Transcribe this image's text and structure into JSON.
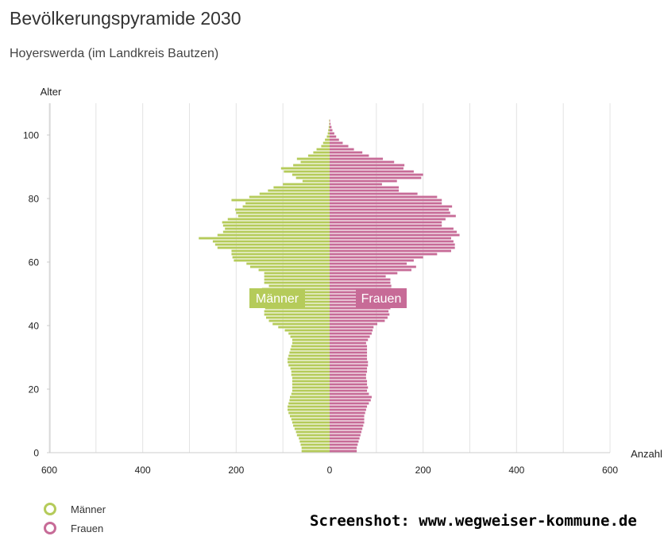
{
  "header": {
    "title": "Bevölkerungspyramide 2030",
    "subtitle": "Hoyerswerda (im Landkreis Bautzen)"
  },
  "legend": [
    {
      "label": "Männer",
      "color": "#b5cb5a"
    },
    {
      "label": "Frauen",
      "color": "#c76b97"
    }
  ],
  "footer": {
    "credit": "Screenshot: www.wegweiser-kommune.de"
  },
  "chart_data": {
    "type": "bar",
    "orientation": "horizontal-pyramid",
    "ylabel": "Alter",
    "xlabel": "Anzahl",
    "xlim": [
      -600,
      600
    ],
    "ylim": [
      0,
      110
    ],
    "x_ticks": [
      "600",
      "400",
      "200",
      "0",
      "200",
      "400",
      "600"
    ],
    "y_ticks": [
      "0",
      "20",
      "40",
      "60",
      "80",
      "100"
    ],
    "series_labels": {
      "left": "Männer",
      "right": "Frauen"
    },
    "ages": [
      0,
      1,
      2,
      3,
      4,
      5,
      6,
      7,
      8,
      9,
      10,
      11,
      12,
      13,
      14,
      15,
      16,
      17,
      18,
      19,
      20,
      21,
      22,
      23,
      24,
      25,
      26,
      27,
      28,
      29,
      30,
      31,
      32,
      33,
      34,
      35,
      36,
      37,
      38,
      39,
      40,
      41,
      42,
      43,
      44,
      45,
      46,
      47,
      48,
      49,
      50,
      51,
      52,
      53,
      54,
      55,
      56,
      57,
      58,
      59,
      60,
      61,
      62,
      63,
      64,
      65,
      66,
      67,
      68,
      69,
      70,
      71,
      72,
      73,
      74,
      75,
      76,
      77,
      78,
      79,
      80,
      81,
      82,
      83,
      84,
      85,
      86,
      87,
      88,
      89,
      90,
      91,
      92,
      93,
      94,
      95,
      96,
      97,
      98,
      99,
      100,
      101,
      102,
      103,
      104
    ],
    "series": [
      {
        "name": "Männer",
        "color": "#b5cb5a",
        "values": [
          60,
          60,
          62,
          64,
          66,
          70,
          72,
          75,
          78,
          80,
          82,
          85,
          88,
          90,
          90,
          88,
          86,
          85,
          82,
          80,
          80,
          80,
          80,
          80,
          82,
          82,
          84,
          88,
          90,
          90,
          88,
          86,
          84,
          82,
          80,
          80,
          84,
          88,
          96,
          110,
          122,
          130,
          136,
          140,
          140,
          138,
          136,
          135,
          135,
          135,
          140,
          145,
          130,
          140,
          140,
          140,
          140,
          152,
          170,
          178,
          205,
          208,
          210,
          210,
          240,
          245,
          250,
          280,
          240,
          228,
          224,
          228,
          230,
          218,
          196,
          200,
          202,
          186,
          180,
          210,
          172,
          150,
          132,
          120,
          100,
          58,
          72,
          80,
          98,
          104,
          78,
          62,
          70,
          46,
          35,
          28,
          18,
          14,
          10,
          6,
          4,
          3,
          2,
          1,
          1
        ]
      },
      {
        "name": "Frauen",
        "color": "#c76b97",
        "values": [
          58,
          58,
          60,
          62,
          64,
          66,
          68,
          70,
          72,
          74,
          74,
          74,
          76,
          78,
          80,
          84,
          88,
          90,
          84,
          80,
          82,
          80,
          80,
          78,
          78,
          80,
          80,
          82,
          82,
          80,
          80,
          80,
          80,
          80,
          78,
          82,
          86,
          90,
          92,
          94,
          102,
          118,
          124,
          128,
          126,
          130,
          130,
          128,
          128,
          126,
          132,
          132,
          132,
          130,
          130,
          120,
          145,
          175,
          185,
          165,
          180,
          200,
          230,
          260,
          268,
          268,
          265,
          260,
          278,
          272,
          265,
          240,
          240,
          248,
          270,
          258,
          255,
          262,
          240,
          240,
          230,
          188,
          148,
          148,
          112,
          144,
          196,
          200,
          180,
          158,
          160,
          138,
          114,
          84,
          70,
          52,
          40,
          28,
          20,
          14,
          10,
          6,
          4,
          2,
          1
        ]
      }
    ]
  }
}
